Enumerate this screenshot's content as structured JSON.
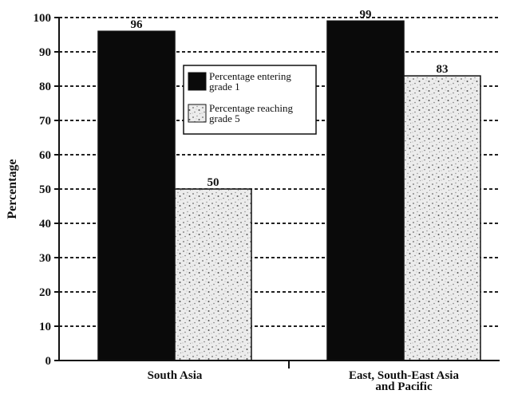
{
  "chart_data": {
    "type": "bar",
    "title": "",
    "xlabel": "",
    "ylabel": "Percentage",
    "ylim": [
      0,
      100
    ],
    "yticks": [
      0,
      10,
      20,
      30,
      40,
      50,
      60,
      70,
      80,
      90,
      100
    ],
    "grid": true,
    "legend_position": "inside-top-center",
    "categories": [
      [
        "South Asia"
      ],
      [
        "East, South-East Asia",
        "and Pacific"
      ]
    ],
    "series": [
      {
        "name": "Percentage entering grade 1",
        "legend_lines": [
          "Percentage entering",
          "grade 1"
        ],
        "values": [
          96,
          99
        ],
        "color": "#0a0a0a"
      },
      {
        "name": "Percentage reaching grade 5",
        "legend_lines": [
          "Percentage reaching",
          "grade 5"
        ],
        "values": [
          50,
          83
        ],
        "color": "#e6e6e6"
      }
    ]
  }
}
